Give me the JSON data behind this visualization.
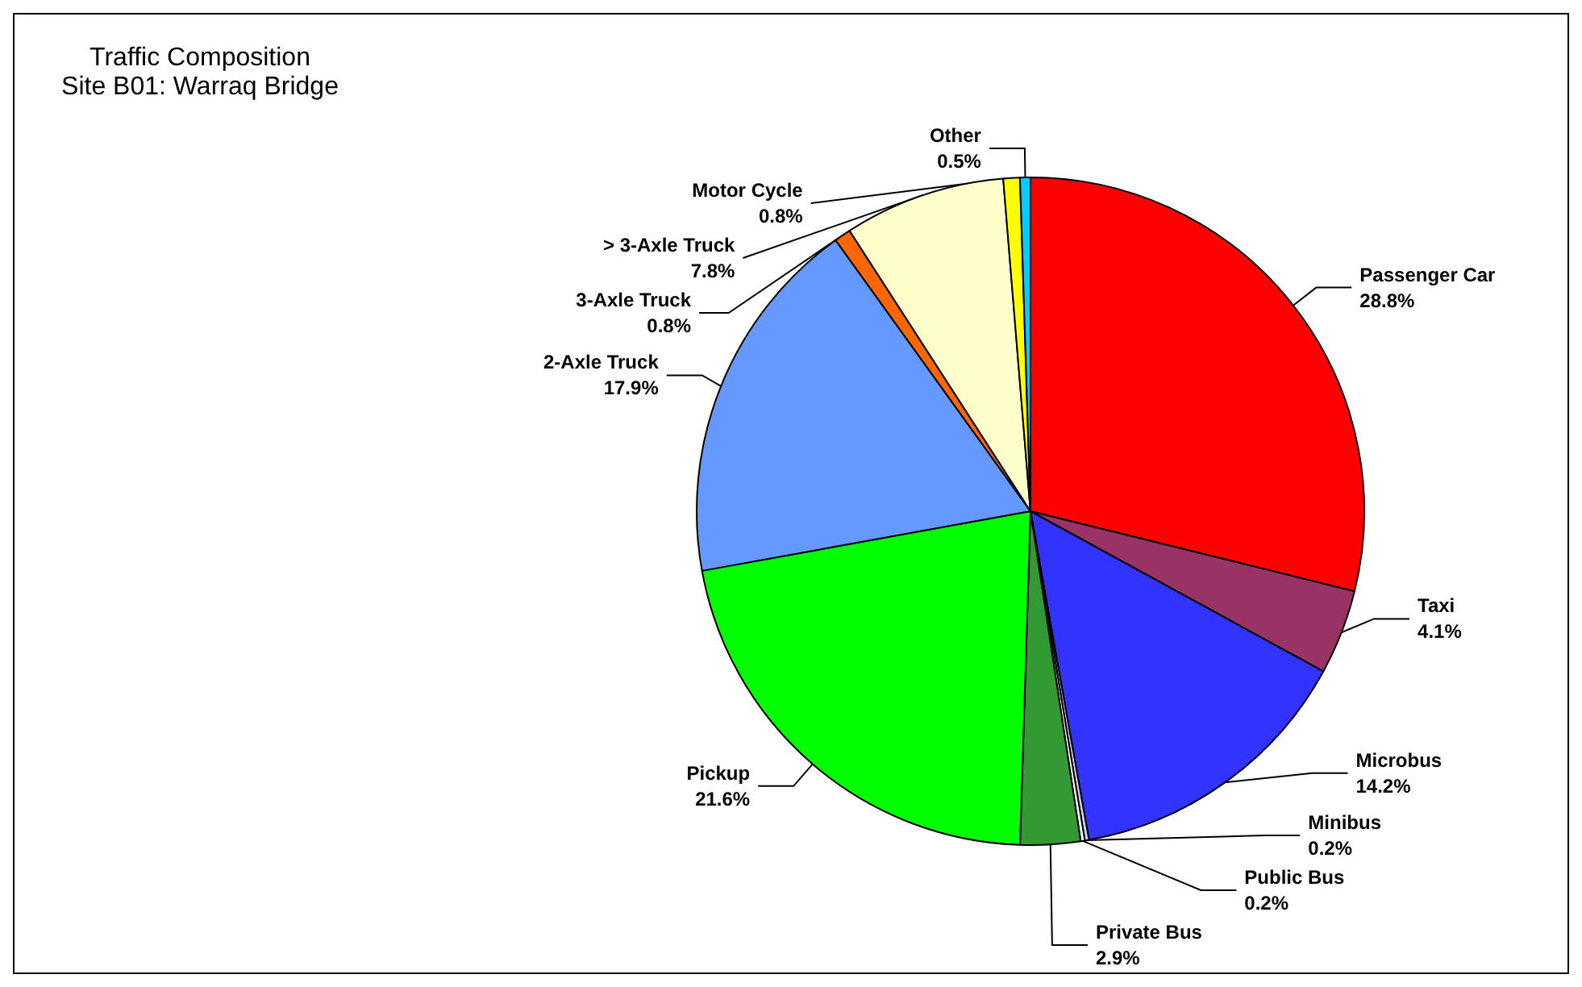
{
  "chart_data": {
    "type": "pie",
    "title": "Traffic Composition",
    "subtitle": "Site B01: Warraq Bridge",
    "categories": [
      "Passenger Car",
      "Taxi",
      "Microbus",
      "Minibus",
      "Public Bus",
      "Private Bus",
      "Pickup",
      "2-Axle Truck",
      "3-Axle Truck",
      "> 3-Axle Truck",
      "Motor Cycle",
      "Other"
    ],
    "values": [
      28.8,
      4.1,
      14.2,
      0.2,
      0.2,
      2.9,
      21.6,
      17.9,
      0.8,
      7.8,
      0.8,
      0.5
    ],
    "colors": [
      "#ff0000",
      "#993366",
      "#3333ff",
      "#ccccff",
      "#ffffff",
      "#339933",
      "#00ff00",
      "#6699ff",
      "#ff6600",
      "#ffffcc",
      "#ffff00",
      "#00ccff"
    ],
    "value_labels": [
      "28.8%",
      "4.1%",
      "14.2%",
      "0.2%",
      "0.2%",
      "2.9%",
      "21.6%",
      "17.9%",
      "0.8%",
      "7.8%",
      "0.8%",
      "0.5%"
    ],
    "legend": false
  }
}
